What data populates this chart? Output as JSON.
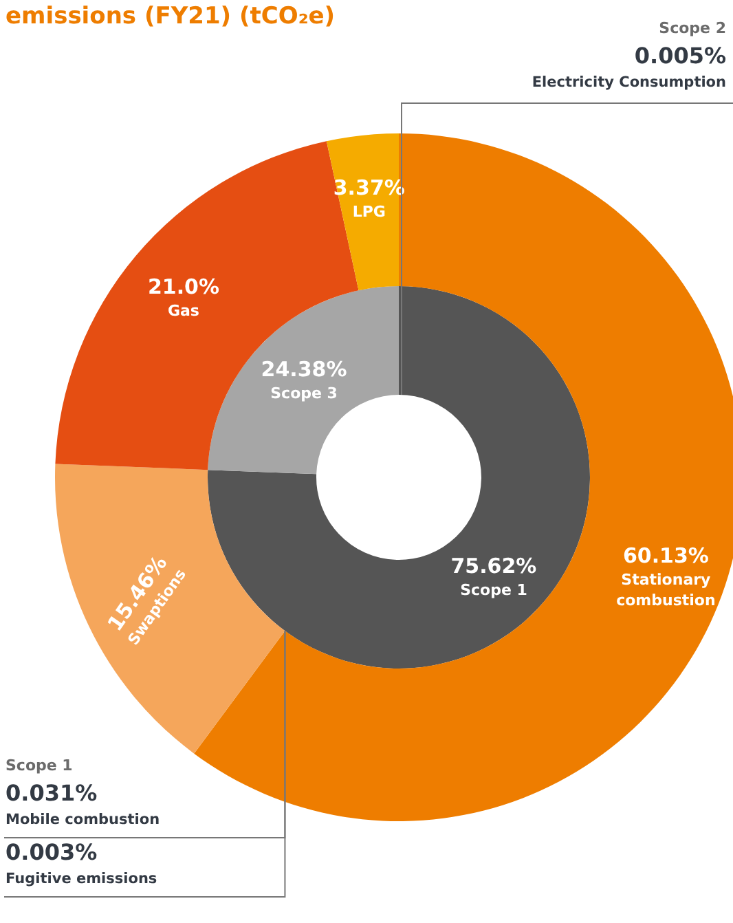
{
  "chart_data": [
    {
      "type": "donut",
      "title": "emissions (FY21) (tCO₂e)",
      "categories": [
        "Scope 1",
        "Scope 3"
      ],
      "values": [
        75.62,
        24.38
      ],
      "colors": [
        "#555555",
        "#a6a6a6"
      ],
      "value_labels": [
        "75.62%",
        "24.38%"
      ]
    },
    {
      "type": "donut",
      "categories": [
        "Stationary combustion",
        "Swaptions",
        "Gas",
        "LPG"
      ],
      "values": [
        60.13,
        15.46,
        21.0,
        3.37
      ],
      "colors": [
        "#ee7d00",
        "#f5a65b",
        "#e54e12",
        "#f5ab00"
      ],
      "value_labels": [
        "60.13%",
        "15.46%",
        "21.0%",
        "3.37%"
      ],
      "annotations": [
        "Scope 2",
        "0.005%",
        "Electricity Consumption",
        "Scope 1",
        "0.031%",
        "Mobile combustion",
        "0.003%",
        "Fugitive emissions"
      ]
    }
  ]
}
